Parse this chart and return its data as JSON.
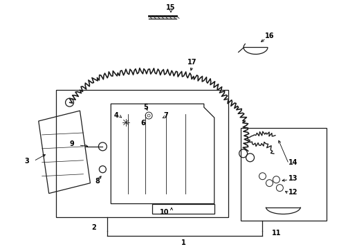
{
  "bg_color": "#ffffff",
  "line_color": "#1a1a1a",
  "fig_width": 4.9,
  "fig_height": 3.6,
  "dpi": 100,
  "label_fontsize": 7.0
}
